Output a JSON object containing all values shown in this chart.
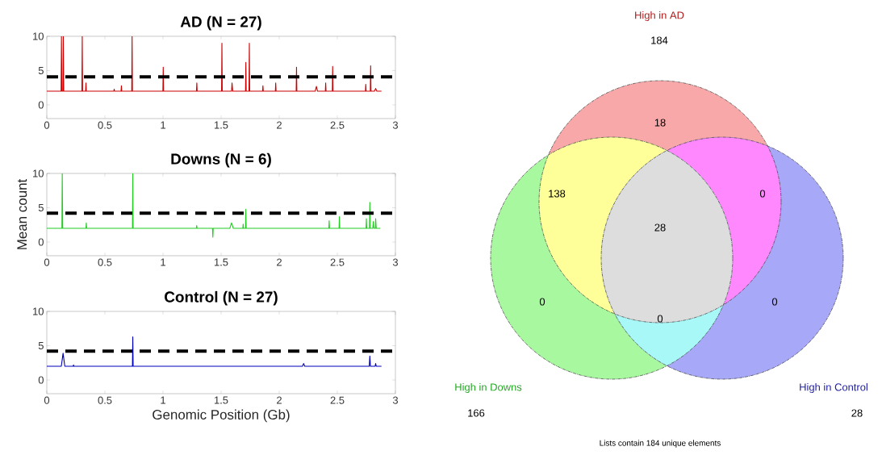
{
  "chart_data": [
    {
      "type": "line",
      "title": "AD (N = 27)",
      "color": "#cc0000",
      "x": [
        0,
        0.05,
        0.1,
        0.123,
        0.126,
        0.13,
        0.139,
        0.142,
        0.146,
        0.2,
        0.302,
        0.305,
        0.308,
        0.334,
        0.337,
        0.34,
        0.45,
        0.577,
        0.58,
        0.583,
        0.639,
        0.642,
        0.645,
        0.731,
        0.734,
        0.737,
        0.9,
        0.999,
        1.002,
        1.005,
        1.15,
        1.288,
        1.291,
        1.294,
        1.4,
        1.504,
        1.507,
        1.51,
        1.59,
        1.594,
        1.6,
        1.71,
        1.713,
        1.716,
        1.74,
        1.743,
        1.746,
        1.857,
        1.86,
        1.863,
        1.967,
        1.97,
        1.973,
        2.146,
        2.149,
        2.152,
        2.31,
        2.32,
        2.33,
        2.397,
        2.4,
        2.403,
        2.457,
        2.46,
        2.463,
        2.6,
        2.742,
        2.745,
        2.748,
        2.784,
        2.787,
        2.79,
        2.82,
        2.83,
        2.84,
        2.88
      ],
      "values": [
        2,
        2,
        2,
        2,
        10,
        2,
        2,
        10,
        2,
        2,
        2,
        10,
        2,
        2,
        3.2,
        2,
        2,
        2,
        2.3,
        2,
        2,
        2.8,
        2,
        2,
        10,
        2,
        2,
        2,
        5.5,
        2,
        2,
        2,
        3.2,
        2,
        2,
        2,
        9,
        2,
        2,
        3.2,
        2,
        2,
        6.2,
        2,
        2,
        9,
        2,
        2,
        2.8,
        2,
        2,
        3.2,
        2,
        2,
        5.5,
        2,
        2,
        2.7,
        2,
        2,
        3.2,
        2,
        2,
        5.6,
        2,
        2,
        2,
        3,
        2,
        2,
        5.7,
        2,
        2,
        2.4,
        2,
        2
      ],
      "xlim": [
        0,
        3
      ],
      "ylim": [
        -2,
        10
      ],
      "xticks": [
        0,
        0.5,
        1,
        1.5,
        2,
        2.5,
        3
      ],
      "yticks": [
        0,
        5,
        10
      ],
      "ref_lines": [
        {
          "axis": "y",
          "value": 4.1,
          "color": "#000000",
          "line_style": "dashed"
        }
      ]
    },
    {
      "type": "line",
      "title": "Downs (N = 6)",
      "ylabel": "Mean count",
      "color": "#22cc22",
      "x": [
        0,
        0.05,
        0.1,
        0.13,
        0.133,
        0.137,
        0.2,
        0.337,
        0.34,
        0.343,
        0.5,
        0.737,
        0.74,
        0.743,
        1.0,
        1.287,
        1.29,
        1.293,
        1.426,
        1.429,
        1.432,
        1.575,
        1.59,
        1.605,
        1.687,
        1.69,
        1.693,
        1.71,
        1.713,
        1.716,
        2.0,
        2.427,
        2.43,
        2.433,
        2.515,
        2.518,
        2.521,
        2.6,
        2.747,
        2.75,
        2.753,
        2.777,
        2.78,
        2.783,
        2.805,
        2.81,
        2.815,
        2.827,
        2.83,
        2.835,
        2.87
      ],
      "values": [
        2,
        2,
        2,
        2,
        10,
        2,
        2,
        2,
        2.8,
        2,
        2,
        2,
        10,
        2,
        2,
        2,
        2.4,
        2,
        2,
        0.7,
        2,
        2,
        2.8,
        2,
        2,
        2.6,
        2,
        2,
        4.8,
        2,
        2,
        2,
        3.1,
        2,
        2,
        3.7,
        2,
        2,
        2,
        3.4,
        2,
        2,
        5.8,
        2,
        2,
        3,
        2,
        2,
        3.4,
        2,
        2
      ],
      "xlim": [
        0,
        3
      ],
      "ylim": [
        -2,
        10
      ],
      "xticks": [
        0,
        0.5,
        1,
        1.5,
        2,
        2.5,
        3
      ],
      "yticks": [
        0,
        5,
        10
      ],
      "ref_lines": [
        {
          "axis": "y",
          "value": 4.2,
          "color": "#000000",
          "line_style": "dashed"
        }
      ]
    },
    {
      "type": "line",
      "title": "Control (N = 27)",
      "xlabel": "Genomic Position (Gb)",
      "color": "#0000bb",
      "x": [
        0,
        0.05,
        0.1,
        0.125,
        0.14,
        0.155,
        0.227,
        0.23,
        0.233,
        0.5,
        0.737,
        0.74,
        0.743,
        1.5,
        2.2,
        2.21,
        2.22,
        2.5,
        2.775,
        2.78,
        2.785,
        2.825,
        2.83,
        2.835,
        2.88
      ],
      "values": [
        2,
        2,
        2,
        2,
        3.9,
        2,
        2,
        2.2,
        2,
        2,
        2,
        6.3,
        2,
        2,
        2,
        2.4,
        2,
        2,
        2,
        3.5,
        2,
        2,
        2.4,
        2,
        2
      ],
      "xlim": [
        0,
        3
      ],
      "ylim": [
        -2,
        10
      ],
      "xticks": [
        0,
        0.5,
        1,
        1.5,
        2,
        2.5,
        3
      ],
      "yticks": [
        0,
        5,
        10
      ],
      "ref_lines": [
        {
          "axis": "y",
          "value": 4.2,
          "color": "#000000",
          "line_style": "dashed"
        }
      ]
    },
    {
      "type": "other",
      "categories": [
        null,
        null,
        null,
        null,
        null,
        null,
        null
      ],
      "values": [
        18,
        138,
        0,
        28,
        0,
        0,
        0
      ],
      "colors": [
        "#f8a8a8",
        "#ffff99",
        "#ff88ff",
        "#dddddd",
        "#a8f8a0",
        "#a8f8f8",
        "#a8a8f8"
      ],
      "data_labels": true,
      "annotations": [
        "High in AD",
        "184",
        "High in Downs",
        "166",
        "High in Control",
        "28",
        "Lists contain 184 unique elements"
      ]
    }
  ]
}
